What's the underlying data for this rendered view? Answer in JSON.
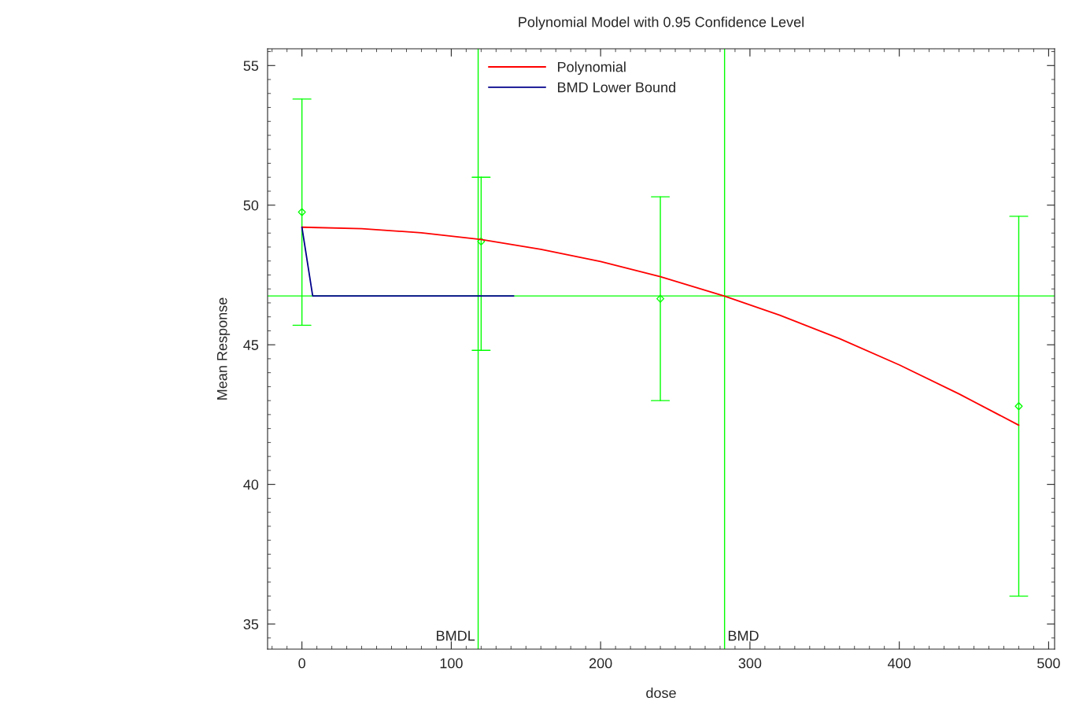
{
  "chart_data": {
    "type": "scatter",
    "title": "Polynomial Model with 0.95 Confidence Level",
    "xlabel": "dose",
    "ylabel": "Mean Response",
    "xlim": [
      -23,
      504
    ],
    "ylim": [
      34.1,
      55.6
    ],
    "xticks": [
      0,
      100,
      200,
      300,
      400,
      500
    ],
    "yticks": [
      35,
      40,
      45,
      50,
      55
    ],
    "grid": false,
    "legend": "top",
    "series": [
      {
        "color": "#00ff00",
        "marker": "diamond",
        "x": [
          0,
          120,
          240,
          480
        ],
        "values": [
          49.75,
          48.7,
          46.65,
          42.8
        ],
        "errors": [
          [
            45.7,
            53.8
          ],
          [
            44.8,
            51.0
          ],
          [
            43.0,
            50.3
          ],
          [
            36.0,
            49.6
          ]
        ]
      },
      {
        "type": "line",
        "name": "Polynomial",
        "color": "#ff0000",
        "marker": "none",
        "x": [
          0,
          40,
          80,
          120,
          160,
          200,
          240,
          283,
          320,
          360,
          400,
          440,
          480
        ],
        "values": [
          49.21,
          49.16,
          49.01,
          48.77,
          48.42,
          47.98,
          47.44,
          46.74,
          46.06,
          45.22,
          44.28,
          43.24,
          42.12
        ]
      },
      {
        "type": "line",
        "name": "BMD Lower Bound",
        "color": "#00008b",
        "marker": "none",
        "x": [
          0,
          7.2,
          49.8,
          99.2,
          117.7,
          141.8
        ],
        "values": [
          49.21,
          46.75,
          46.75,
          46.75,
          46.75,
          46.75
        ]
      }
    ],
    "ref_lines": [
      {
        "axis": "y",
        "value": 46.75,
        "color": "#00ff00"
      },
      {
        "axis": "x",
        "value": 118,
        "label": "BMDL",
        "color": "#00ff00"
      },
      {
        "axis": "x",
        "value": 283,
        "label": "BMD",
        "color": "#00ff00"
      }
    ]
  }
}
